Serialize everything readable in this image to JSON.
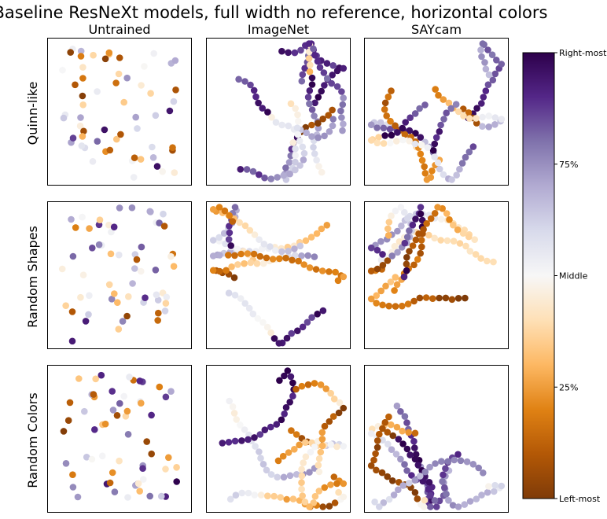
{
  "chart_data": {
    "type": "scatter",
    "title": "Baseline ResNeXt models, full width no reference, horizontal colors",
    "columns": [
      "Untrained",
      "ImageNet",
      "SAYcam"
    ],
    "rows": [
      "Quinn-like",
      "Random Shapes",
      "Random Colors"
    ],
    "colormap": {
      "name": "PuOr",
      "stops": [
        "#7f3b08",
        "#b35806",
        "#e08214",
        "#fdb863",
        "#fee0b6",
        "#f7f7f7",
        "#d8daeb",
        "#b2abd2",
        "#8073ac",
        "#542788",
        "#2d004b"
      ]
    },
    "colorbar": {
      "ticks": [
        {
          "value": 0.0,
          "label": "Left-most"
        },
        {
          "value": 0.25,
          "label": "25%"
        },
        {
          "value": 0.5,
          "label": "Middle"
        },
        {
          "value": 0.75,
          "label": "75%"
        },
        {
          "value": 1.0,
          "label": "Right-most"
        }
      ]
    },
    "panels": [
      {
        "row": "Quinn-like",
        "column": "Untrained",
        "layout": "scattered",
        "points": 60
      },
      {
        "row": "Quinn-like",
        "column": "ImageNet",
        "layout": "clustered-strands",
        "points": 130
      },
      {
        "row": "Quinn-like",
        "column": "SAYcam",
        "layout": "clustered-strands",
        "points": 130
      },
      {
        "row": "Random Shapes",
        "column": "Untrained",
        "layout": "scattered",
        "points": 60
      },
      {
        "row": "Random Shapes",
        "column": "ImageNet",
        "layout": "clustered-strands",
        "points": 130
      },
      {
        "row": "Random Shapes",
        "column": "SAYcam",
        "layout": "clustered-strands",
        "points": 130
      },
      {
        "row": "Random Colors",
        "column": "Untrained",
        "layout": "scattered",
        "points": 60
      },
      {
        "row": "Random Colors",
        "column": "ImageNet",
        "layout": "clustered-strands",
        "points": 130
      },
      {
        "row": "Random Colors",
        "column": "SAYcam",
        "layout": "clustered-strands",
        "points": 130
      }
    ],
    "axes": {
      "xticks": false,
      "yticks": false
    },
    "grid": false,
    "legend": "colorbar-right"
  }
}
